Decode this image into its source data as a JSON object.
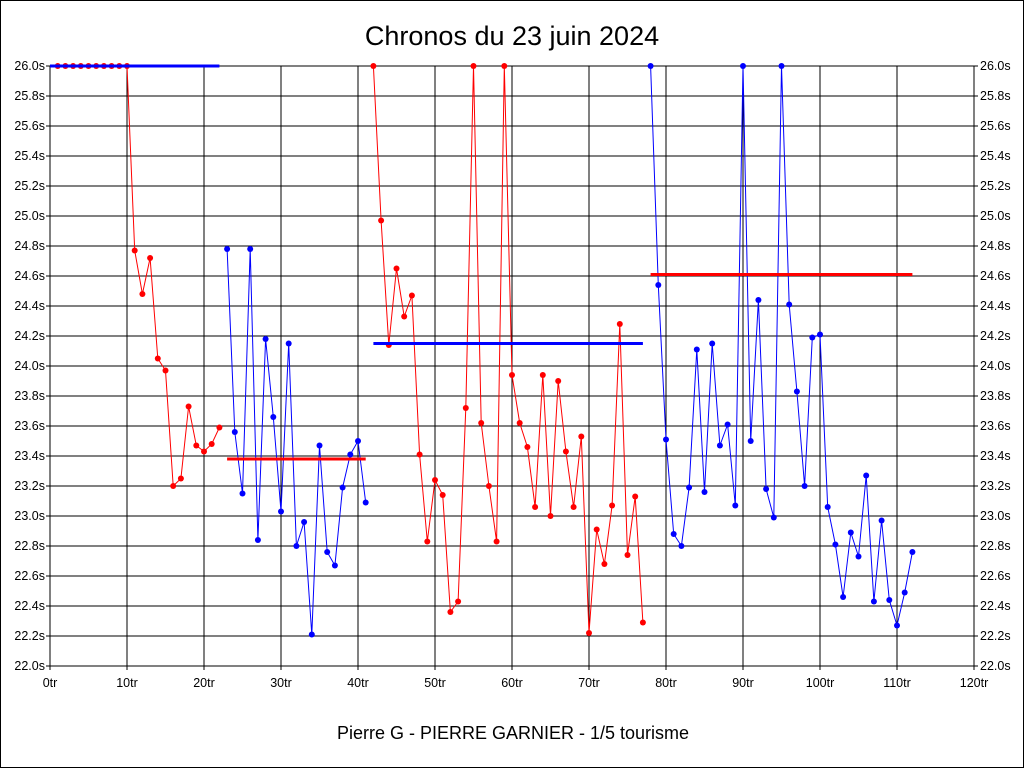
{
  "chart_data": {
    "type": "line",
    "title": "Chronos du 23 juin 2024",
    "subtitle": "Pierre G - PIERRE GARNIER - 1/5 tourisme",
    "xlabel": "",
    "ylabel": "",
    "xlim": [
      0,
      120
    ],
    "ylim": [
      22.0,
      26.0
    ],
    "x_ticks": [
      "0tr",
      "10tr",
      "20tr",
      "30tr",
      "40tr",
      "50tr",
      "60tr",
      "70tr",
      "80tr",
      "90tr",
      "100tr",
      "110tr",
      "120tr"
    ],
    "y_ticks": [
      "22.0s",
      "22.2s",
      "22.4s",
      "22.6s",
      "22.8s",
      "23.0s",
      "23.2s",
      "23.4s",
      "23.6s",
      "23.8s",
      "24.0s",
      "24.2s",
      "24.4s",
      "24.6s",
      "24.8s",
      "25.0s",
      "25.2s",
      "25.4s",
      "25.6s",
      "25.8s",
      "26.0s"
    ],
    "grid": true,
    "colors": {
      "red": "#ff0000",
      "blue": "#0000ff"
    },
    "series": [
      {
        "color": "#ff0000",
        "points": [
          [
            1,
            26.0
          ],
          [
            2,
            26.0
          ],
          [
            3,
            26.0
          ],
          [
            4,
            26.0
          ],
          [
            5,
            26.0
          ],
          [
            6,
            26.0
          ],
          [
            7,
            26.0
          ],
          [
            8,
            26.0
          ],
          [
            9,
            26.0
          ],
          [
            10,
            26.0
          ],
          [
            11,
            24.77
          ],
          [
            12,
            24.48
          ],
          [
            13,
            24.72
          ],
          [
            14,
            24.05
          ],
          [
            15,
            23.97
          ],
          [
            16,
            23.2
          ],
          [
            17,
            23.25
          ],
          [
            18,
            23.73
          ],
          [
            19,
            23.47
          ],
          [
            20,
            23.43
          ],
          [
            21,
            23.48
          ],
          [
            22,
            23.59
          ]
        ],
        "average": {
          "x": [
            0,
            22
          ],
          "y": 26.0,
          "color": "#0000ff"
        }
      },
      {
        "color": "#0000ff",
        "points": [
          [
            23,
            24.78
          ],
          [
            24,
            23.56
          ],
          [
            25,
            23.15
          ],
          [
            26,
            24.78
          ],
          [
            27,
            22.84
          ],
          [
            28,
            24.18
          ],
          [
            29,
            23.66
          ],
          [
            30,
            23.03
          ],
          [
            31,
            24.15
          ],
          [
            32,
            22.8
          ],
          [
            33,
            22.96
          ],
          [
            34,
            22.21
          ],
          [
            35,
            23.47
          ],
          [
            36,
            22.76
          ],
          [
            37,
            22.67
          ],
          [
            38,
            23.19
          ],
          [
            39,
            23.41
          ],
          [
            40,
            23.5
          ],
          [
            41,
            23.09
          ]
        ],
        "average": {
          "x": [
            23,
            41
          ],
          "y": 23.38,
          "color": "#ff0000"
        }
      },
      {
        "color": "#ff0000",
        "points": [
          [
            42,
            26.0
          ],
          [
            43,
            24.97
          ],
          [
            44,
            24.14
          ],
          [
            45,
            24.65
          ],
          [
            46,
            24.33
          ],
          [
            47,
            24.47
          ],
          [
            48,
            23.41
          ],
          [
            49,
            22.83
          ],
          [
            50,
            23.24
          ],
          [
            51,
            23.14
          ],
          [
            52,
            22.36
          ],
          [
            53,
            22.43
          ],
          [
            54,
            23.72
          ],
          [
            55,
            26.0
          ],
          [
            56,
            23.62
          ],
          [
            57,
            23.2
          ],
          [
            58,
            22.83
          ],
          [
            59,
            26.0
          ],
          [
            60,
            23.94
          ],
          [
            61,
            23.62
          ],
          [
            62,
            23.46
          ],
          [
            63,
            23.06
          ],
          [
            64,
            23.94
          ],
          [
            65,
            23.0
          ],
          [
            66,
            23.9
          ],
          [
            67,
            23.43
          ],
          [
            68,
            23.06
          ],
          [
            69,
            23.53
          ],
          [
            70,
            22.22
          ],
          [
            71,
            22.91
          ],
          [
            72,
            22.68
          ],
          [
            73,
            23.07
          ],
          [
            74,
            24.28
          ],
          [
            75,
            22.74
          ],
          [
            76,
            23.13
          ],
          [
            77,
            22.29
          ]
        ],
        "average": {
          "x": [
            42,
            77
          ],
          "y": 24.15,
          "color": "#0000ff"
        }
      },
      {
        "color": "#0000ff",
        "points": [
          [
            78,
            26.0
          ],
          [
            79,
            24.54
          ],
          [
            80,
            23.51
          ],
          [
            81,
            22.88
          ],
          [
            82,
            22.8
          ],
          [
            83,
            23.19
          ],
          [
            84,
            24.11
          ],
          [
            85,
            23.16
          ],
          [
            86,
            24.15
          ],
          [
            87,
            23.47
          ],
          [
            88,
            23.61
          ],
          [
            89,
            23.07
          ],
          [
            90,
            26.0
          ],
          [
            91,
            23.5
          ],
          [
            92,
            24.44
          ],
          [
            93,
            23.18
          ],
          [
            94,
            22.99
          ],
          [
            95,
            26.0
          ],
          [
            96,
            24.41
          ],
          [
            97,
            23.83
          ],
          [
            98,
            23.2
          ],
          [
            99,
            24.19
          ],
          [
            100,
            24.21
          ],
          [
            101,
            23.06
          ],
          [
            102,
            22.81
          ],
          [
            103,
            22.46
          ],
          [
            104,
            22.89
          ],
          [
            105,
            22.73
          ],
          [
            106,
            23.27
          ],
          [
            107,
            22.43
          ],
          [
            108,
            22.97
          ],
          [
            109,
            22.44
          ],
          [
            110,
            22.27
          ],
          [
            111,
            22.49
          ],
          [
            112,
            22.76
          ]
        ],
        "average": {
          "x": [
            78,
            112
          ],
          "y": 24.61,
          "color": "#ff0000"
        }
      }
    ]
  }
}
